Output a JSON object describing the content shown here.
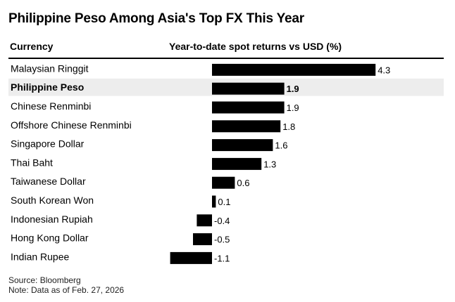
{
  "title": "Philippine Peso Among Asia's Top FX This Year",
  "header": {
    "currency_col": "Currency",
    "returns_col": "Year-to-date spot returns vs USD (%)"
  },
  "chart_data": {
    "type": "bar",
    "orientation": "horizontal",
    "title": "Philippine Peso Among Asia's Top FX This Year",
    "xlabel": "Year-to-date spot returns vs USD (%)",
    "ylabel": "Currency",
    "categories": [
      "Malaysian Ringgit",
      "Philippine Peso",
      "Chinese Renminbi",
      "Offshore Chinese Renminbi",
      "Singapore Dollar",
      "Thai Baht",
      "Taiwanese Dollar",
      "South Korean Won",
      "Indonesian Rupiah",
      "Hong Kong Dollar",
      "Indian Rupee"
    ],
    "values": [
      4.3,
      1.9,
      1.9,
      1.8,
      1.6,
      1.3,
      0.6,
      0.1,
      -0.4,
      -0.5,
      -1.1
    ],
    "value_labels": [
      "4.3",
      "1.9",
      "1.9",
      "1.8",
      "1.6",
      "1.3",
      "0.6",
      "0.1",
      "-0.4",
      "-0.5",
      "-1.1"
    ],
    "highlight": "Philippine Peso",
    "xlim": [
      -1.1,
      4.3
    ],
    "bar_color": "#000000",
    "highlight_row_color": "#ededed"
  },
  "footer": {
    "source": "Source: Bloomberg",
    "note": "Note: Data as of Feb. 27, 2026"
  }
}
